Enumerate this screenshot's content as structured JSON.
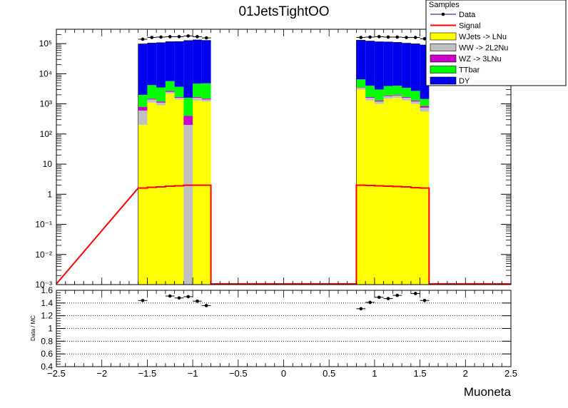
{
  "title": "01JetsTightOO",
  "chart_data": [
    {
      "type": "bar",
      "stacked": true,
      "yscale": "log",
      "ylim": [
        0.001,
        300000
      ],
      "xlim": [
        -2.5,
        2.5
      ],
      "xlabel": "Muoneta",
      "ylabel": "",
      "grid": false,
      "legend": {
        "title": "Samples",
        "placement": "top-right",
        "entries": [
          "Data",
          "Signal",
          "WJets -> LNu",
          "WW -> 2L2Nu",
          "WZ -> 3LNu",
          "TTbar",
          "DY"
        ]
      },
      "x_ticks": [
        "−2.5",
        "−2",
        "−1.5",
        "−1",
        "−0.5",
        "0",
        "0.5",
        "1",
        "1.5",
        "2",
        "2.5"
      ],
      "y_ticks": [
        "10⁻³",
        "10⁻²",
        "10⁻¹",
        "1",
        "10",
        "10²",
        "10³",
        "10⁴",
        "10⁵"
      ],
      "bin_edges": [
        -1.6,
        -1.5,
        -1.4,
        -1.3,
        -1.2,
        -1.1,
        -1.0,
        -0.9,
        -0.8,
        0.8,
        0.9,
        1.0,
        1.1,
        1.2,
        1.3,
        1.4,
        1.5,
        1.6
      ],
      "series": [
        {
          "name": "WJets -> LNu",
          "color": "#ffff00",
          "values": [
            200,
            1100,
            900,
            2200,
            1400,
            0.001,
            1300,
            1200,
            null,
            3000,
            1300,
            1000,
            1500,
            1600,
            1300,
            1000,
            550
          ]
        },
        {
          "name": "WW -> 2L2Nu",
          "color": "#c0c0c0",
          "values": [
            400,
            300,
            200,
            300,
            200,
            200,
            300,
            200,
            null,
            400,
            300,
            200,
            300,
            300,
            300,
            200,
            200
          ]
        },
        {
          "name": "WZ -> 3LNu",
          "color": "#cc00cc",
          "values": [
            200,
            100,
            100,
            200,
            100,
            200,
            100,
            100,
            null,
            100,
            100,
            100,
            100,
            100,
            100,
            100,
            100
          ]
        },
        {
          "name": "TTbar",
          "color": "#00ff00",
          "values": [
            1200,
            2700,
            2300,
            3000,
            2000,
            1200,
            3000,
            3300,
            null,
            3000,
            2300,
            1700,
            2000,
            2000,
            1700,
            1400,
            600
          ]
        },
        {
          "name": "DY",
          "color": "#0000ee",
          "values": [
            96000,
            100000,
            104000,
            110000,
            113000,
            125000,
            128000,
            123000,
            null,
            123000,
            118000,
            112000,
            110000,
            106000,
            100000,
            96000,
            89000
          ]
        }
      ],
      "signal": {
        "name": "Signal",
        "color": "#ff0000",
        "values": [
          1.6,
          1.7,
          1.75,
          1.85,
          1.9,
          2.0,
          2.0,
          2.0,
          null,
          2.0,
          1.95,
          1.9,
          1.85,
          1.8,
          1.75,
          1.65,
          1.6
        ]
      },
      "data": {
        "name": "Data",
        "x": [
          -1.55,
          -1.45,
          -1.35,
          -1.25,
          -1.15,
          -1.05,
          -0.95,
          -0.85,
          0.85,
          0.95,
          1.05,
          1.15,
          1.25,
          1.35,
          1.45,
          1.55
        ],
        "y": [
          140000,
          160000,
          165000,
          170000,
          170000,
          180000,
          170000,
          155000,
          160000,
          165000,
          170000,
          165000,
          165000,
          160000,
          160000,
          145000
        ]
      }
    },
    {
      "type": "scatter",
      "ylabel": "Data / MC",
      "xlim": [
        -2.5,
        2.5
      ],
      "ylim": [
        0.4,
        1.6
      ],
      "grid": "horizontal dotted",
      "y_ticks": [
        "0.4",
        "0.6",
        "0.8",
        "1",
        "1.2",
        "1.4",
        "1.6"
      ],
      "x": [
        -1.55,
        -1.25,
        -1.15,
        -1.05,
        -0.95,
        -0.85,
        0.85,
        0.95,
        1.05,
        1.15,
        1.25,
        1.45,
        1.55
      ],
      "y": [
        1.44,
        1.51,
        1.48,
        1.5,
        1.43,
        1.36,
        1.31,
        1.41,
        1.49,
        1.47,
        1.52,
        1.55,
        1.44
      ]
    }
  ]
}
